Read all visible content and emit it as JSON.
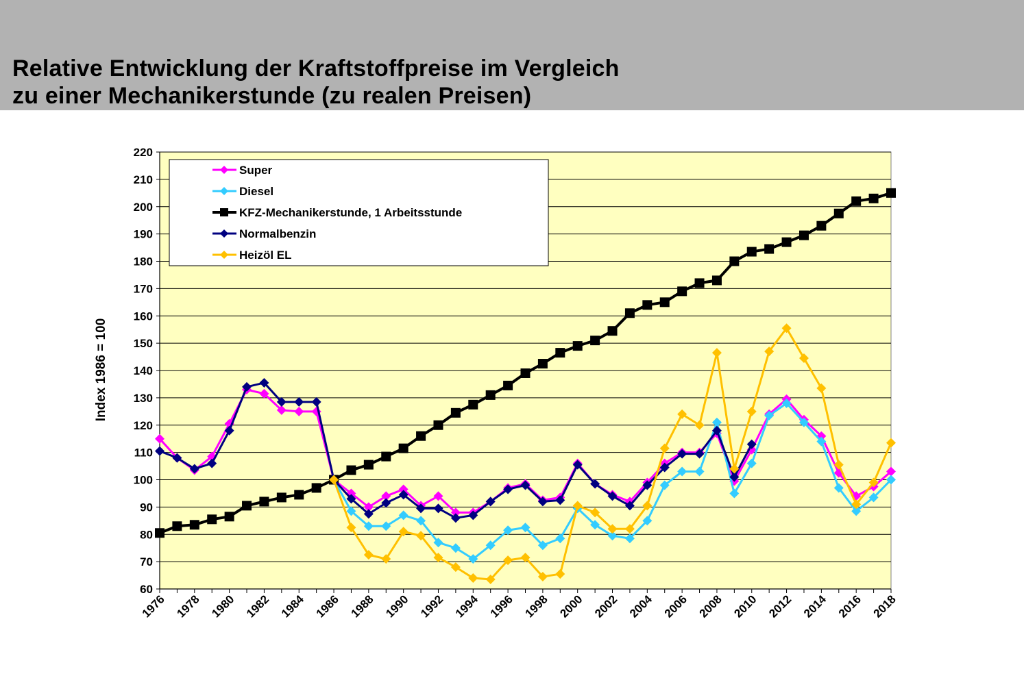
{
  "header": {
    "title_line1": "Relative Entwicklung der Kraftstoffpreise im Vergleich",
    "title_line2": "zu einer Mechanikerstunde (zu realen Preisen)"
  },
  "chart_data": {
    "type": "line",
    "ylabel": "Index 1986 = 100",
    "xlabel": "",
    "ylim": [
      60,
      220
    ],
    "yticks": [
      60,
      70,
      80,
      90,
      100,
      110,
      120,
      130,
      140,
      150,
      160,
      170,
      180,
      190,
      200,
      210,
      220
    ],
    "xlim": [
      1976,
      2018
    ],
    "xticks": [
      1976,
      1978,
      1980,
      1982,
      1984,
      1986,
      1988,
      1990,
      1992,
      1994,
      1996,
      1998,
      2000,
      2002,
      2004,
      2006,
      2008,
      2010,
      2012,
      2014,
      2016,
      2018
    ],
    "grid": "horizontal",
    "plot_background": "#ffffc0",
    "legend_position": "top-left",
    "x": [
      1976,
      1977,
      1978,
      1979,
      1980,
      1981,
      1982,
      1983,
      1984,
      1985,
      1986,
      1987,
      1988,
      1989,
      1990,
      1991,
      1992,
      1993,
      1994,
      1995,
      1996,
      1997,
      1998,
      1999,
      2000,
      2001,
      2002,
      2003,
      2004,
      2005,
      2006,
      2007,
      2008,
      2009,
      2010,
      2011,
      2012,
      2013,
      2014,
      2015,
      2016,
      2017,
      2018
    ],
    "series": [
      {
        "name": "Super",
        "color": "#ff00ff",
        "marker": "diamond",
        "values": [
          115,
          108,
          103.5,
          108.5,
          120.5,
          133,
          131.5,
          125.5,
          125,
          125,
          100,
          95,
          90,
          94,
          96.5,
          90.5,
          94,
          88,
          88,
          92,
          97,
          98.5,
          92.5,
          93.5,
          106,
          98.5,
          94.5,
          92,
          99,
          106,
          110,
          110,
          117,
          99.5,
          111,
          124,
          129.5,
          122,
          116,
          102.5,
          94,
          97.5,
          103
        ]
      },
      {
        "name": "Diesel",
        "color": "#33ccff",
        "marker": "diamond",
        "values": [
          null,
          null,
          null,
          null,
          null,
          null,
          null,
          null,
          null,
          null,
          100,
          88.5,
          83,
          83,
          87,
          85,
          77,
          75,
          71,
          76,
          81.5,
          82.5,
          76,
          78.5,
          89.5,
          83.5,
          79.5,
          78.5,
          85,
          98,
          103,
          103,
          121,
          95,
          106,
          123.5,
          128,
          121,
          114,
          97,
          88.5,
          93.5,
          100
        ]
      },
      {
        "name": "KFZ-Mechanikerstunde, 1 Arbeitsstunde",
        "color": "#000000",
        "marker": "square",
        "values": [
          80.5,
          83,
          83.5,
          85.5,
          86.5,
          90.5,
          92,
          93.5,
          94.5,
          97,
          100,
          103.5,
          105.5,
          108.5,
          111.5,
          116,
          120,
          124.5,
          127.5,
          131,
          134.5,
          139,
          142.5,
          146.5,
          149,
          151,
          154.5,
          161,
          164,
          165,
          169,
          172,
          173,
          180,
          183.5,
          184.5,
          187,
          189.5,
          193,
          197.5,
          202,
          203,
          205
        ]
      },
      {
        "name": "Normalbenzin",
        "color": "#000080",
        "marker": "diamond",
        "values": [
          110.5,
          108,
          104,
          106,
          118,
          134,
          135.5,
          128.5,
          128.5,
          128.5,
          100,
          93,
          87.5,
          91.5,
          94.5,
          89.5,
          89.5,
          86,
          87,
          92,
          96.5,
          98,
          92,
          92.5,
          105.5,
          98.5,
          94,
          90.5,
          98,
          104.5,
          109.5,
          109.5,
          118,
          101,
          113,
          null,
          null,
          null,
          null,
          null,
          null,
          null,
          null
        ]
      },
      {
        "name": "Heizöl EL",
        "color": "#ffc000",
        "marker": "diamond",
        "values": [
          null,
          null,
          null,
          null,
          null,
          null,
          null,
          null,
          null,
          null,
          100,
          82.5,
          72.5,
          71,
          81,
          79.5,
          71.5,
          68,
          64,
          63.5,
          70.5,
          71.5,
          64.5,
          65.5,
          90.5,
          88,
          82,
          82,
          90.5,
          111.5,
          124,
          120,
          146.5,
          104,
          125,
          147,
          155.5,
          144.5,
          133.5,
          105.5,
          91,
          99,
          113.5
        ]
      }
    ]
  }
}
